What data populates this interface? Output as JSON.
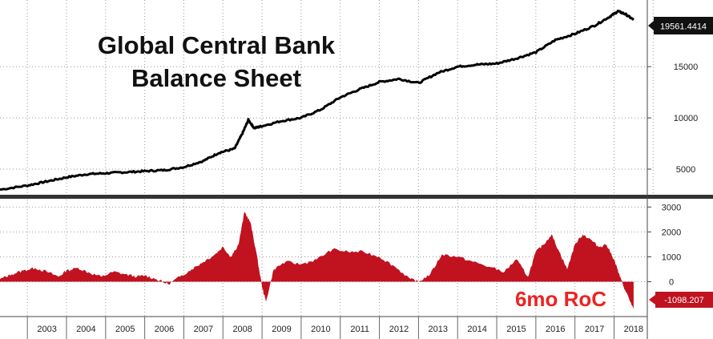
{
  "chart_data": [
    {
      "type": "line",
      "title": "Global Central Bank",
      "subtitle": "Balance Sheet",
      "ylim": [
        2500,
        21500
      ],
      "yticks": [
        "5000",
        "10000",
        "15000"
      ],
      "last_value_label": "19561.4414",
      "series": [
        {
          "x": [
            2002.3,
            2003.0,
            2003.5,
            2004.0,
            2004.5,
            2005.0,
            2005.5,
            2006.0,
            2006.5,
            2007.0,
            2007.5,
            2007.9,
            2008.3,
            2008.5,
            2008.65,
            2008.8,
            2009.0,
            2009.5,
            2010.0,
            2010.5,
            2011.0,
            2011.5,
            2012.0,
            2012.5,
            2013.0,
            2013.5,
            2014.0,
            2014.5,
            2015.0,
            2015.5,
            2016.0,
            2016.5,
            2017.0,
            2017.5,
            2017.9,
            2018.1,
            2018.3,
            2018.5
          ],
          "values": [
            3000,
            3400,
            3800,
            4200,
            4500,
            4600,
            4700,
            4800,
            4900,
            5200,
            5800,
            6600,
            7000,
            8500,
            9800,
            9000,
            9200,
            9700,
            10000,
            10800,
            12000,
            12800,
            13500,
            13800,
            13400,
            14400,
            15000,
            15200,
            15300,
            15800,
            16400,
            17600,
            18200,
            19000,
            19900,
            20400,
            20100,
            19561
          ]
        }
      ]
    },
    {
      "type": "area",
      "title": "6mo RoC",
      "ylim": [
        -1400,
        3300
      ],
      "yticks": [
        "3000",
        "2000",
        "1000",
        "0"
      ],
      "last_value_label": "-1098.207",
      "categories": [
        "2003",
        "2004",
        "2005",
        "2006",
        "2007",
        "2008",
        "2009",
        "2010",
        "2011",
        "2012",
        "2013",
        "2014",
        "2015",
        "2016",
        "2017",
        "2018"
      ],
      "series": [
        {
          "x": [
            2002.3,
            2002.6,
            2002.9,
            2003.2,
            2003.5,
            2003.8,
            2004.0,
            2004.3,
            2004.6,
            2004.9,
            2005.2,
            2005.5,
            2005.8,
            2006.0,
            2006.3,
            2006.6,
            2006.9,
            2007.2,
            2007.5,
            2007.8,
            2008.0,
            2008.2,
            2008.4,
            2008.55,
            2008.7,
            2008.85,
            2009.0,
            2009.1,
            2009.3,
            2009.6,
            2010.0,
            2010.4,
            2010.8,
            2011.2,
            2011.6,
            2012.0,
            2012.4,
            2012.8,
            2013.0,
            2013.3,
            2013.6,
            2014.0,
            2014.4,
            2014.8,
            2015.2,
            2015.5,
            2015.8,
            2016.0,
            2016.2,
            2016.4,
            2016.6,
            2016.8,
            2017.0,
            2017.2,
            2017.4,
            2017.6,
            2017.8,
            2018.0,
            2018.15,
            2018.3,
            2018.5
          ],
          "values": [
            100,
            300,
            450,
            550,
            400,
            200,
            450,
            550,
            350,
            200,
            400,
            300,
            200,
            250,
            100,
            -100,
            200,
            500,
            800,
            1100,
            1400,
            1000,
            1500,
            2800,
            2400,
            1200,
            -200,
            -800,
            500,
            800,
            700,
            900,
            1300,
            1200,
            1200,
            1000,
            600,
            100,
            0,
            300,
            1100,
            1000,
            800,
            600,
            400,
            900,
            200,
            1200,
            1500,
            1900,
            1200,
            500,
            1500,
            1900,
            1700,
            1400,
            1500,
            900,
            200,
            -400,
            -1098
          ]
        }
      ]
    }
  ],
  "colors": {
    "line": "#000000",
    "area": "#c1121f",
    "grid": "#999999",
    "divider": "#333333",
    "flag_bg": "#111111",
    "flag_neg_bg": "#c1121f",
    "roc_label": "#ee2222"
  }
}
